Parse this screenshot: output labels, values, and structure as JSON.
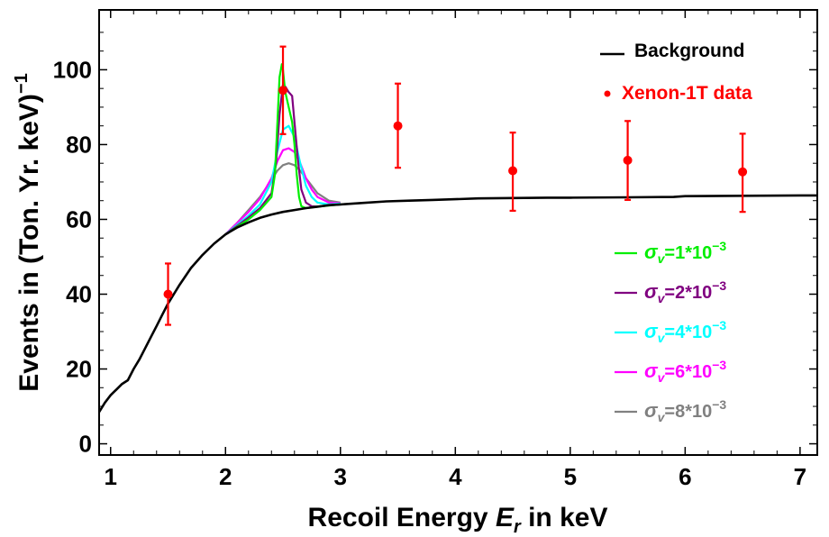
{
  "chart_data": {
    "type": "line",
    "xlabel": {
      "prefix": "Recoil Energy ",
      "var": "E",
      "sub": "r",
      "suffix": " in keV"
    },
    "ylabel": {
      "text": "Events in (Ton. Yr. keV)",
      "sup": "−1"
    },
    "xlim": [
      0.9,
      7.15
    ],
    "ylim": [
      -3,
      116
    ],
    "xticks": [
      1,
      2,
      3,
      4,
      5,
      6,
      7
    ],
    "yticks": [
      0,
      20,
      40,
      60,
      80,
      100
    ],
    "colors": {
      "background": "#000000",
      "data": "#ff0000",
      "s1": "#00ee00",
      "s2": "#800080",
      "s4": "#00ffff",
      "s6": "#ff00ff",
      "s8": "#808080"
    },
    "background_curve": {
      "name": "Background",
      "x": [
        0.9,
        0.95,
        1.0,
        1.05,
        1.1,
        1.15,
        1.2,
        1.25,
        1.3,
        1.35,
        1.4,
        1.45,
        1.5,
        1.55,
        1.6,
        1.7,
        1.8,
        1.9,
        2.0,
        2.1,
        2.2,
        2.3,
        2.4,
        2.5,
        2.6,
        2.7,
        2.8,
        2.9,
        3.0,
        3.2,
        3.4,
        3.6,
        3.8,
        4.0,
        4.2,
        4.5,
        4.8,
        5.0,
        5.5,
        5.9,
        6.0,
        6.5,
        7.0,
        7.15
      ],
      "y": [
        8.5,
        11,
        13,
        14.5,
        16,
        17,
        20,
        22.5,
        25.5,
        28.5,
        31.5,
        34.5,
        37.5,
        40,
        42.5,
        47,
        50.5,
        53.5,
        56,
        57.8,
        59.2,
        60.4,
        61.3,
        62.0,
        62.5,
        63.0,
        63.4,
        63.8,
        64.0,
        64.4,
        64.8,
        65.0,
        65.2,
        65.4,
        65.6,
        65.7,
        65.8,
        65.8,
        65.9,
        66.0,
        66.2,
        66.3,
        66.4,
        66.4
      ]
    },
    "data_points": {
      "name": "Xenon-1T data",
      "x": [
        1.5,
        2.5,
        3.5,
        4.5,
        5.5,
        6.5
      ],
      "y": [
        40.0,
        94.5,
        85.0,
        73.0,
        75.8,
        72.7
      ],
      "err_low": [
        31.8,
        82.8,
        73.8,
        62.3,
        65.2,
        62.0
      ],
      "err_high": [
        48.2,
        106.2,
        96.3,
        83.2,
        86.3,
        82.9
      ]
    },
    "signal_series": [
      {
        "key": "s1",
        "label": "=1*10",
        "exp": "−3",
        "x": [
          2.0,
          2.1,
          2.2,
          2.3,
          2.4,
          2.43,
          2.45,
          2.47,
          2.49,
          2.5,
          2.52,
          2.55,
          2.58,
          2.6,
          2.62,
          2.64,
          2.66,
          2.7,
          2.8,
          3.0
        ],
        "y": [
          56.0,
          58.0,
          60.0,
          62.5,
          66.0,
          72.0,
          85.0,
          98.0,
          101.5,
          100.0,
          94.0,
          90.0,
          86.0,
          80.0,
          72.0,
          66.0,
          63.5,
          63.0,
          63.4,
          64.0
        ]
      },
      {
        "key": "s2",
        "label": "=2*10",
        "exp": "−3",
        "x": [
          2.0,
          2.1,
          2.2,
          2.3,
          2.4,
          2.44,
          2.47,
          2.5,
          2.52,
          2.55,
          2.58,
          2.6,
          2.63,
          2.66,
          2.7,
          2.75,
          2.8,
          2.9,
          3.0
        ],
        "y": [
          56.0,
          58.2,
          60.5,
          63.0,
          67.0,
          75.0,
          88.0,
          96.0,
          95.5,
          94.0,
          93.0,
          86.0,
          76.0,
          68.0,
          64.5,
          63.5,
          63.4,
          63.8,
          64.0
        ]
      },
      {
        "key": "s4",
        "label": "=4*10",
        "exp": "−3",
        "x": [
          2.0,
          2.1,
          2.2,
          2.3,
          2.4,
          2.45,
          2.5,
          2.55,
          2.6,
          2.65,
          2.7,
          2.75,
          2.8,
          2.9,
          3.0
        ],
        "y": [
          56.0,
          58.5,
          61.0,
          64.0,
          70.0,
          78.0,
          84.0,
          85.0,
          82.0,
          75.0,
          69.0,
          66.0,
          64.5,
          64.0,
          64.2
        ]
      },
      {
        "key": "s6",
        "label": "=6*10",
        "exp": "−3",
        "x": [
          2.0,
          2.1,
          2.2,
          2.3,
          2.4,
          2.45,
          2.5,
          2.55,
          2.6,
          2.65,
          2.7,
          2.75,
          2.8,
          2.9,
          3.0
        ],
        "y": [
          56.0,
          59.0,
          62.0,
          65.5,
          71.0,
          75.5,
          78.5,
          79.0,
          78.0,
          75.0,
          71.0,
          68.0,
          66.0,
          64.5,
          64.3
        ]
      },
      {
        "key": "s8",
        "label": "=8*10",
        "exp": "−3",
        "x": [
          2.0,
          2.1,
          2.2,
          2.3,
          2.4,
          2.45,
          2.5,
          2.55,
          2.6,
          2.65,
          2.7,
          2.75,
          2.8,
          2.9,
          3.0
        ],
        "y": [
          56.0,
          59.0,
          62.5,
          66.0,
          70.5,
          73.0,
          74.5,
          75.0,
          74.5,
          73.0,
          71.0,
          69.0,
          67.0,
          65.0,
          64.5
        ]
      }
    ],
    "legend": {
      "background_label": "Background",
      "data_label": "Xenon-1T data",
      "sigma_symbol": "σ",
      "sigma_sub": "v",
      "placement": "right"
    }
  }
}
